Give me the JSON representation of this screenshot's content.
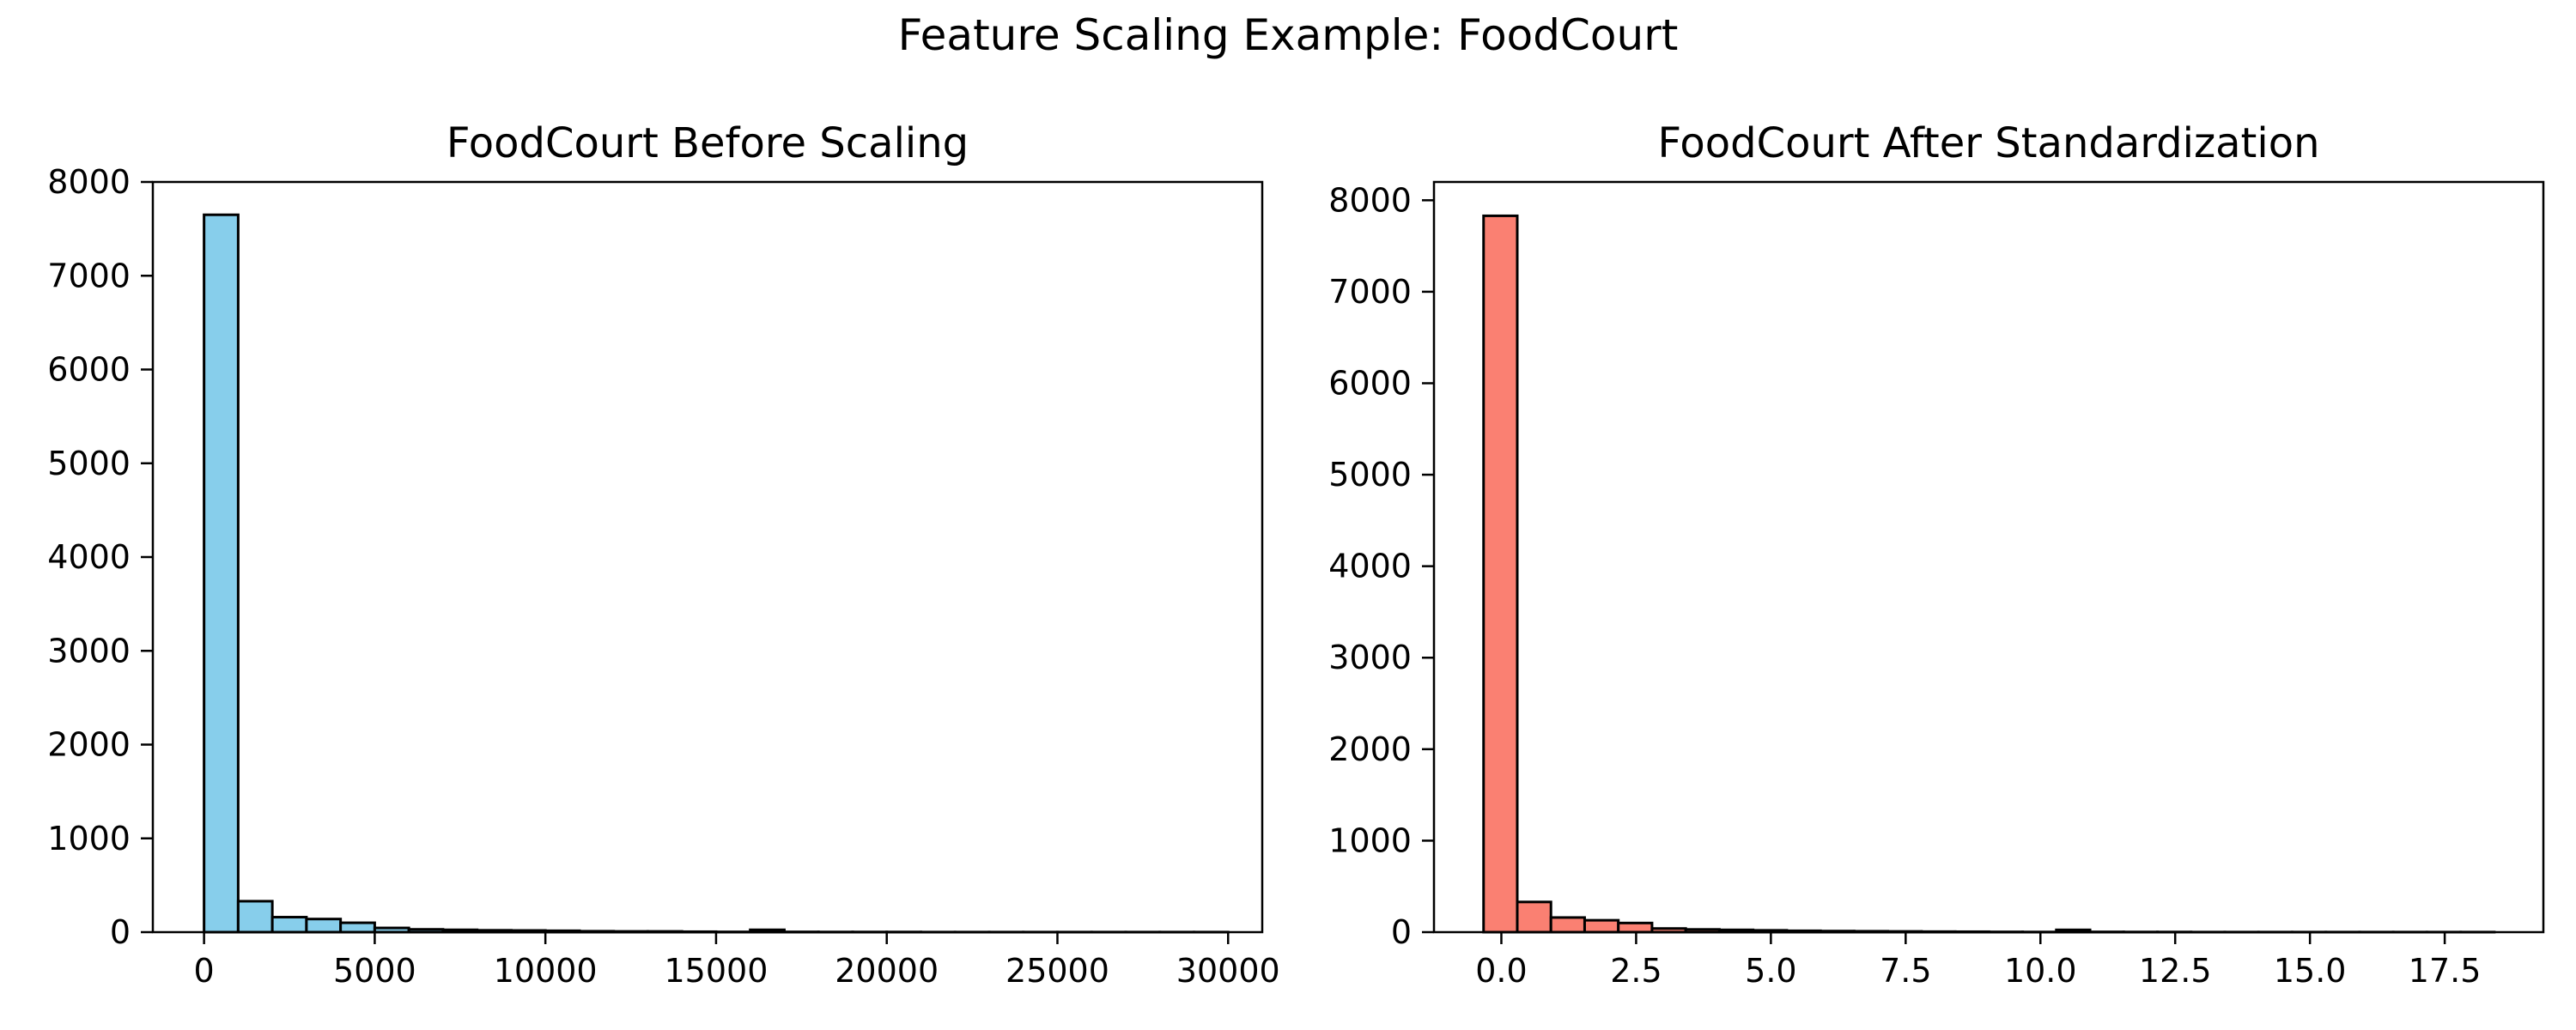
{
  "figure": {
    "title": "Feature Scaling Example: FoodCourt"
  },
  "chart_data": [
    {
      "type": "bar",
      "subtype": "histogram",
      "title": "FoodCourt Before Scaling",
      "xlabel": "",
      "ylabel": "",
      "color": "#87CEEB",
      "edgecolor": "#000000",
      "bin_start": 0,
      "bin_width": 1000,
      "values": [
        7650,
        330,
        160,
        140,
        100,
        45,
        30,
        25,
        20,
        18,
        15,
        10,
        8,
        8,
        5,
        3,
        25,
        3,
        2,
        2,
        2,
        1,
        1,
        1,
        1,
        1,
        1,
        1,
        1,
        1
      ],
      "xlim": [
        -1500,
        31000
      ],
      "ylim": [
        0,
        8000
      ],
      "xticks": [
        0,
        5000,
        10000,
        15000,
        20000,
        25000,
        30000
      ],
      "yticks": [
        0,
        1000,
        2000,
        3000,
        4000,
        5000,
        6000,
        7000,
        8000
      ],
      "grid": false
    },
    {
      "type": "bar",
      "subtype": "histogram",
      "title": "FoodCourt After Standardization",
      "xlabel": "",
      "ylabel": "",
      "color": "#FA8072",
      "edgecolor": "#000000",
      "bin_start": -0.33,
      "bin_width": 0.625,
      "values": [
        7830,
        330,
        160,
        130,
        100,
        40,
        30,
        25,
        20,
        15,
        12,
        10,
        8,
        6,
        5,
        3,
        2,
        25,
        3,
        2,
        2,
        1,
        1,
        1,
        1,
        1,
        1,
        1,
        1,
        1
      ],
      "xlim": [
        -1.25,
        19.33
      ],
      "ylim": [
        0,
        8200
      ],
      "xticks": [
        0.0,
        2.5,
        5.0,
        7.5,
        10.0,
        12.5,
        15.0,
        17.5
      ],
      "xtick_labels": [
        "0.0",
        "2.5",
        "5.0",
        "7.5",
        "10.0",
        "12.5",
        "15.0",
        "17.5"
      ],
      "yticks": [
        0,
        1000,
        2000,
        3000,
        4000,
        5000,
        6000,
        7000,
        8000
      ],
      "grid": false
    }
  ]
}
